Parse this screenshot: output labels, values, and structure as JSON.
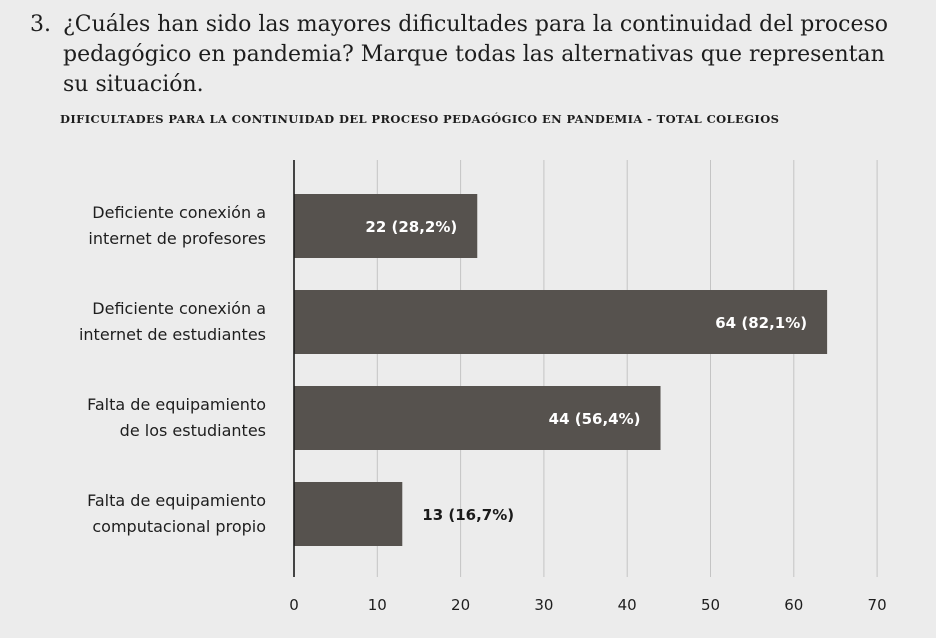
{
  "question": {
    "number": "3.",
    "text": "¿Cuáles han sido las mayores dificultades para la continuidad del proceso pedagógico en pandemia? Marque todas las alternativas que representan su situación."
  },
  "subtitle": "DIFICULTADES PARA LA CONTINUIDAD DEL PROCESO PEDAGÓGICO EN PANDEMIA - TOTAL COLEGIOS",
  "colors": {
    "bar": "#56524e",
    "grid": "#c4c4c4",
    "axis": "#1a1a1a",
    "label_inside": "#ffffff",
    "label_outside": "#1a1a1a"
  },
  "chart_data": {
    "type": "bar",
    "orientation": "horizontal",
    "categories": [
      "Deficiente conexión a internet de profesores",
      "Deficiente conexión a internet de estudiantes",
      "Falta de equipamiento de los estudiantes",
      "Falta de equipamiento computacional propio"
    ],
    "category_lines": [
      [
        "Deficiente conexión a",
        "internet de profesores"
      ],
      [
        "Deficiente conexión a",
        "internet de estudiantes"
      ],
      [
        "Falta de equipamiento",
        "de los estudiantes"
      ],
      [
        "Falta de equipamiento",
        "computacional propio"
      ]
    ],
    "values": [
      22,
      64,
      44,
      13
    ],
    "data_labels": [
      "22 (28,2%)",
      "64 (82,1%)",
      "44 (56,4%)",
      "13 (16,7%)"
    ],
    "xlim": [
      0,
      70
    ],
    "xticks": [
      "0",
      "10",
      "20",
      "30",
      "40",
      "50",
      "60",
      "70"
    ],
    "grid": true
  }
}
